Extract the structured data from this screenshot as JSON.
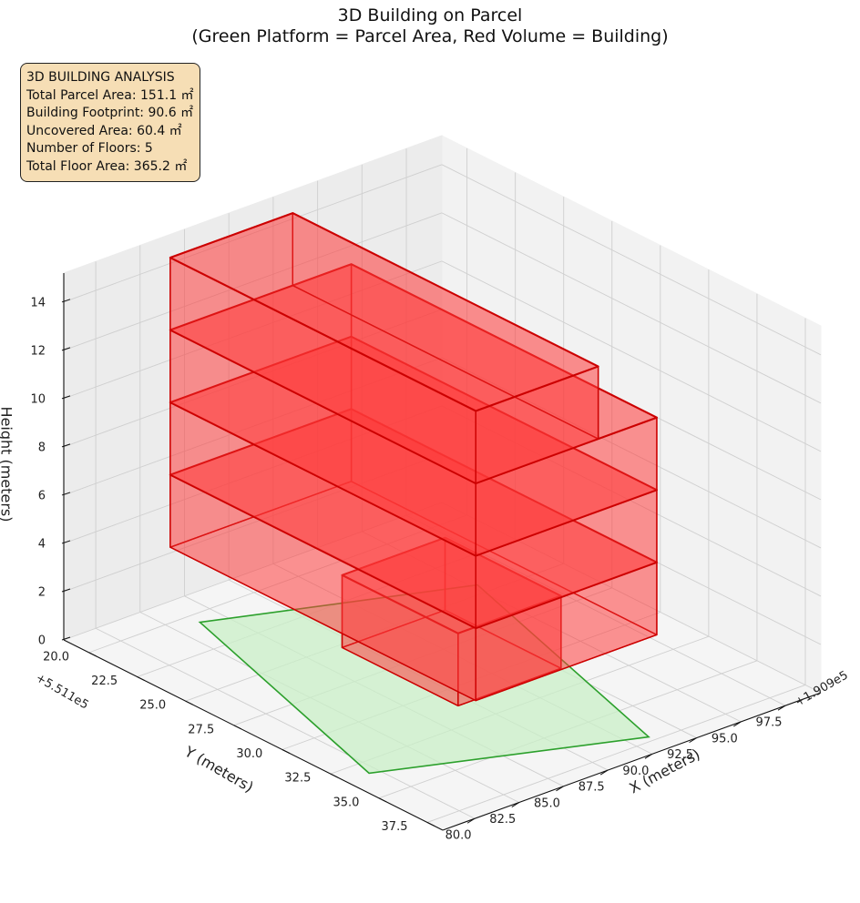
{
  "chart_data": {
    "type": "3d-bar",
    "title": "3D Building on Parcel",
    "subtitle": "(Green Platform = Parcel Area, Red Volume = Building)",
    "xlabel": "X (meters)",
    "ylabel": "Y (meters)",
    "zlabel": "Height (meters)",
    "x_offset_text": "+1.909e5",
    "y_offset_text": "+5.511e5",
    "x_ticks": [
      "80.0",
      "82.5",
      "85.0",
      "87.5",
      "90.0",
      "92.5",
      "95.0",
      "97.5"
    ],
    "y_ticks": [
      "20.0",
      "22.5",
      "25.0",
      "27.5",
      "30.0",
      "32.5",
      "35.0",
      "37.5"
    ],
    "z_ticks": [
      "0",
      "2",
      "4",
      "6",
      "8",
      "10",
      "12",
      "14"
    ],
    "xlim": [
      78.2,
      99.5
    ],
    "ylim": [
      18.7,
      38.3
    ],
    "zlim": [
      0,
      15.2
    ],
    "grid": true,
    "parcel": {
      "color": "#2ca02c",
      "corners": [
        [
          79.5,
          33.3
        ],
        [
          83.8,
          20.6
        ],
        [
          95.3,
          24.4
        ],
        [
          91.0,
          37.2
        ]
      ]
    },
    "building": {
      "color": "#ff0000",
      "floor_height": 3,
      "floors": [
        {
          "level": 1,
          "z": [
            0,
            3
          ],
          "x": [
            86.8,
            92.6
          ],
          "y": [
            25.2,
            31.2
          ]
        },
        {
          "level": 2,
          "z": [
            3,
            6
          ],
          "x": [
            83.0,
            93.2
          ],
          "y": [
            19.8,
            35.6
          ]
        },
        {
          "level": 3,
          "z": [
            6,
            9
          ],
          "x": [
            83.0,
            93.2
          ],
          "y": [
            19.8,
            35.6
          ]
        },
        {
          "level": 4,
          "z": [
            9,
            12
          ],
          "x": [
            83.0,
            93.2
          ],
          "y": [
            19.8,
            35.6
          ]
        },
        {
          "level": 5,
          "z": [
            12,
            15
          ],
          "x": [
            83.0,
            89.9
          ],
          "y": [
            19.8,
            35.6
          ]
        }
      ]
    }
  },
  "info": {
    "title": "3D BUILDING ANALYSIS",
    "total_parcel_area": "Total Parcel Area: 151.1 ㎡",
    "building_footprint": "Building Footprint: 90.6 ㎡",
    "uncovered_area": "Uncovered Area: 60.4 ㎡",
    "number_of_floors": "Number of Floors: 5",
    "total_floor_area": "Total Floor Area: 365.2 ㎡"
  }
}
